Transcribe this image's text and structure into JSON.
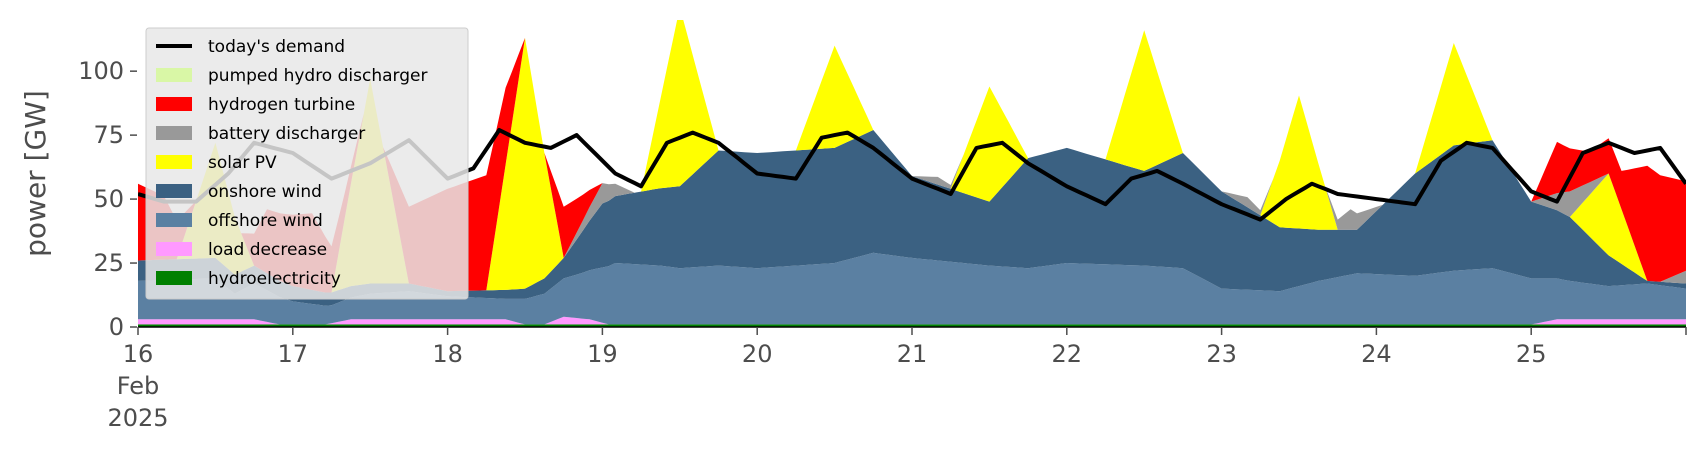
{
  "chart_data": {
    "type": "area",
    "title": "",
    "xlabel": "",
    "ylabel": "power [GW]",
    "ylim": [
      0,
      120
    ],
    "xlim": [
      "2025-02-16T00:00",
      "2025-02-26T00:00"
    ],
    "y_ticks": [
      "0",
      "25",
      "50",
      "75",
      "100"
    ],
    "x_ticks": [
      {
        "label": "16",
        "date": "2025-02-16"
      },
      {
        "label": "17",
        "date": "2025-02-17"
      },
      {
        "label": "18",
        "date": "2025-02-18"
      },
      {
        "label": "19",
        "date": "2025-02-19"
      },
      {
        "label": "20",
        "date": "2025-02-20"
      },
      {
        "label": "21",
        "date": "2025-02-21"
      },
      {
        "label": "22",
        "date": "2025-02-22"
      },
      {
        "label": "23",
        "date": "2025-02-23"
      },
      {
        "label": "24",
        "date": "2025-02-24"
      },
      {
        "label": "25",
        "date": "2025-02-25"
      }
    ],
    "x_tick_sub": [
      "Feb",
      "2025"
    ],
    "grid": false,
    "legend_position": "top-left",
    "stacked": true,
    "series": [
      {
        "name": "hydroelectricity",
        "color": "#008000",
        "points": [
          [
            "2025-02-16T00:00",
            1
          ],
          [
            "2025-02-21T00:00",
            1
          ],
          [
            "2025-02-26T00:00",
            1
          ]
        ]
      },
      {
        "name": "load decrease",
        "color": "#ff99ff",
        "points": [
          [
            "2025-02-16T00:00",
            2
          ],
          [
            "2025-02-16T18:00",
            2
          ],
          [
            "2025-02-16T22:00",
            0
          ],
          [
            "2025-02-17T05:00",
            0
          ],
          [
            "2025-02-17T09:00",
            2
          ],
          [
            "2025-02-18T00:00",
            2
          ],
          [
            "2025-02-18T09:00",
            2
          ],
          [
            "2025-02-18T12:00",
            0
          ],
          [
            "2025-02-18T15:00",
            0
          ],
          [
            "2025-02-18T18:00",
            3
          ],
          [
            "2025-02-18T22:00",
            2
          ],
          [
            "2025-02-19T01:00",
            0
          ],
          [
            "2025-02-25T00:00",
            0
          ],
          [
            "2025-02-25T04:00",
            2
          ],
          [
            "2025-02-26T00:00",
            2
          ]
        ]
      },
      {
        "name": "offshore wind",
        "color": "#5b80a2",
        "points": [
          [
            "2025-02-16T00:00",
            15
          ],
          [
            "2025-02-16T12:00",
            16
          ],
          [
            "2025-02-16T15:00",
            10
          ],
          [
            "2025-02-16T18:00",
            14
          ],
          [
            "2025-02-17T00:00",
            9
          ],
          [
            "2025-02-17T06:00",
            7
          ],
          [
            "2025-02-17T12:00",
            10
          ],
          [
            "2025-02-17T18:00",
            11
          ],
          [
            "2025-02-18T00:00",
            9
          ],
          [
            "2025-02-18T09:00",
            8
          ],
          [
            "2025-02-18T15:00",
            12
          ],
          [
            "2025-02-18T21:00",
            18
          ],
          [
            "2025-02-19T02:00",
            24
          ],
          [
            "2025-02-19T09:00",
            23
          ],
          [
            "2025-02-19T12:00",
            22
          ],
          [
            "2025-02-19T18:00",
            23
          ],
          [
            "2025-02-20T00:00",
            22
          ],
          [
            "2025-02-20T12:00",
            24
          ],
          [
            "2025-02-20T18:00",
            28
          ],
          [
            "2025-02-21T00:00",
            26
          ],
          [
            "2025-02-21T12:00",
            23
          ],
          [
            "2025-02-21T18:00",
            22
          ],
          [
            "2025-02-22T00:00",
            24
          ],
          [
            "2025-02-22T12:00",
            23
          ],
          [
            "2025-02-22T18:00",
            22
          ],
          [
            "2025-02-23T00:00",
            14
          ],
          [
            "2025-02-23T09:00",
            13
          ],
          [
            "2025-02-23T15:00",
            17
          ],
          [
            "2025-02-23T21:00",
            20
          ],
          [
            "2025-02-24T06:00",
            19
          ],
          [
            "2025-02-24T12:00",
            21
          ],
          [
            "2025-02-24T18:00",
            22
          ],
          [
            "2025-02-25T00:00",
            18
          ],
          [
            "2025-02-25T06:00",
            15
          ],
          [
            "2025-02-25T12:00",
            13
          ],
          [
            "2025-02-25T18:00",
            14
          ],
          [
            "2025-02-26T00:00",
            12
          ]
        ]
      },
      {
        "name": "onshore wind",
        "color": "#3b6182",
        "points": [
          [
            "2025-02-16T00:00",
            8
          ],
          [
            "2025-02-16T12:00",
            8
          ],
          [
            "2025-02-17T00:00",
            6
          ],
          [
            "2025-02-17T12:00",
            4
          ],
          [
            "2025-02-18T00:00",
            2
          ],
          [
            "2025-02-18T12:00",
            4
          ],
          [
            "2025-02-18T18:00",
            8
          ],
          [
            "2025-02-19T00:00",
            25
          ],
          [
            "2025-02-19T12:00",
            32
          ],
          [
            "2025-02-19T18:00",
            45
          ],
          [
            "2025-02-20T00:00",
            45
          ],
          [
            "2025-02-20T12:00",
            45
          ],
          [
            "2025-02-20T18:00",
            48
          ],
          [
            "2025-02-21T00:00",
            32
          ],
          [
            "2025-02-21T12:00",
            25
          ],
          [
            "2025-02-21T18:00",
            43
          ],
          [
            "2025-02-22T00:00",
            45
          ],
          [
            "2025-02-22T12:00",
            37
          ],
          [
            "2025-02-22T18:00",
            45
          ],
          [
            "2025-02-23T00:00",
            38
          ],
          [
            "2025-02-23T09:00",
            25
          ],
          [
            "2025-02-23T15:00",
            20
          ],
          [
            "2025-02-23T21:00",
            17
          ],
          [
            "2025-02-24T06:00",
            40
          ],
          [
            "2025-02-24T12:00",
            49
          ],
          [
            "2025-02-24T18:00",
            50
          ],
          [
            "2025-02-25T00:00",
            30
          ],
          [
            "2025-02-25T06:00",
            25
          ],
          [
            "2025-02-25T12:00",
            12
          ],
          [
            "2025-02-25T18:00",
            1
          ],
          [
            "2025-02-26T00:00",
            2
          ]
        ]
      },
      {
        "name": "solar PV",
        "color": "#ffff00",
        "points": [
          [
            "2025-02-16T00:00",
            0
          ],
          [
            "2025-02-16T06:00",
            0
          ],
          [
            "2025-02-16T12:00",
            45
          ],
          [
            "2025-02-16T18:00",
            0
          ],
          [
            "2025-02-17T06:00",
            0
          ],
          [
            "2025-02-17T12:00",
            80
          ],
          [
            "2025-02-17T18:00",
            0
          ],
          [
            "2025-02-18T06:00",
            0
          ],
          [
            "2025-02-18T12:00",
            98
          ],
          [
            "2025-02-18T18:00",
            0
          ],
          [
            "2025-02-19T06:00",
            0
          ],
          [
            "2025-02-19T12:00",
            70
          ],
          [
            "2025-02-19T18:00",
            0
          ],
          [
            "2025-02-20T06:00",
            0
          ],
          [
            "2025-02-20T12:00",
            40
          ],
          [
            "2025-02-20T18:00",
            0
          ],
          [
            "2025-02-21T06:00",
            0
          ],
          [
            "2025-02-21T12:00",
            45
          ],
          [
            "2025-02-21T18:00",
            0
          ],
          [
            "2025-02-22T06:00",
            0
          ],
          [
            "2025-02-22T12:00",
            55
          ],
          [
            "2025-02-22T18:00",
            0
          ],
          [
            "2025-02-23T06:00",
            0
          ],
          [
            "2025-02-23T12:00",
            52
          ],
          [
            "2025-02-23T18:00",
            0
          ],
          [
            "2025-02-24T06:00",
            0
          ],
          [
            "2025-02-24T12:00",
            40
          ],
          [
            "2025-02-24T18:00",
            0
          ],
          [
            "2025-02-25T06:00",
            0
          ],
          [
            "2025-02-25T12:00",
            32
          ],
          [
            "2025-02-25T18:00",
            0
          ],
          [
            "2025-02-26T00:00",
            0
          ]
        ]
      },
      {
        "name": "battery discharger",
        "color": "#999999",
        "points": [
          [
            "2025-02-16T00:00",
            0
          ],
          [
            "2025-02-18T18:00",
            0
          ],
          [
            "2025-02-19T00:00",
            8
          ],
          [
            "2025-02-19T05:00",
            0
          ],
          [
            "2025-02-21T00:00",
            0
          ],
          [
            "2025-02-21T04:00",
            3
          ],
          [
            "2025-02-21T08:00",
            0
          ],
          [
            "2025-02-23T00:00",
            0
          ],
          [
            "2025-02-23T04:00",
            4
          ],
          [
            "2025-02-23T08:00",
            0
          ],
          [
            "2025-02-23T16:00",
            0
          ],
          [
            "2025-02-23T20:00",
            8
          ],
          [
            "2025-02-24T01:00",
            0
          ],
          [
            "2025-02-25T00:00",
            0
          ],
          [
            "2025-02-25T06:00",
            10
          ],
          [
            "2025-02-25T12:00",
            0
          ],
          [
            "2025-02-25T20:00",
            0
          ],
          [
            "2025-02-26T00:00",
            5
          ]
        ]
      },
      {
        "name": "hydrogen turbine",
        "color": "#ff0000",
        "points": [
          [
            "2025-02-16T00:00",
            30
          ],
          [
            "2025-02-16T04:00",
            25
          ],
          [
            "2025-02-16T09:00",
            0
          ],
          [
            "2025-02-16T16:00",
            0
          ],
          [
            "2025-02-16T20:00",
            25
          ],
          [
            "2025-02-17T03:00",
            30
          ],
          [
            "2025-02-17T08:00",
            10
          ],
          [
            "2025-02-17T11:00",
            0
          ],
          [
            "2025-02-17T14:00",
            0
          ],
          [
            "2025-02-17T18:00",
            30
          ],
          [
            "2025-02-18T00:00",
            40
          ],
          [
            "2025-02-18T06:00",
            45
          ],
          [
            "2025-02-18T09:00",
            30
          ],
          [
            "2025-02-18T12:00",
            0
          ],
          [
            "2025-02-18T15:00",
            0
          ],
          [
            "2025-02-18T18:00",
            20
          ],
          [
            "2025-02-19T00:00",
            0
          ],
          [
            "2025-02-25T00:00",
            0
          ],
          [
            "2025-02-25T04:00",
            20
          ],
          [
            "2025-02-25T09:00",
            12
          ],
          [
            "2025-02-25T14:00",
            15
          ],
          [
            "2025-02-25T18:00",
            45
          ],
          [
            "2025-02-26T00:00",
            35
          ]
        ]
      },
      {
        "name": "pumped hydro discharger",
        "color": "#d9f7a6",
        "points": [
          [
            "2025-02-16T00:00",
            0
          ],
          [
            "2025-02-26T00:00",
            0
          ]
        ]
      }
    ],
    "demand": {
      "name": "today's demand",
      "color": "#000000",
      "points": [
        [
          "2025-02-16T00:00",
          52
        ],
        [
          "2025-02-16T04:00",
          49
        ],
        [
          "2025-02-16T09:00",
          49
        ],
        [
          "2025-02-16T14:00",
          60
        ],
        [
          "2025-02-16T18:00",
          72
        ],
        [
          "2025-02-17T00:00",
          68
        ],
        [
          "2025-02-17T06:00",
          58
        ],
        [
          "2025-02-17T12:00",
          64
        ],
        [
          "2025-02-17T18:00",
          73
        ],
        [
          "2025-02-18T00:00",
          58
        ],
        [
          "2025-02-18T04:00",
          62
        ],
        [
          "2025-02-18T08:00",
          77
        ],
        [
          "2025-02-18T12:00",
          72
        ],
        [
          "2025-02-18T16:00",
          70
        ],
        [
          "2025-02-18T20:00",
          75
        ],
        [
          "2025-02-19T02:00",
          60
        ],
        [
          "2025-02-19T06:00",
          55
        ],
        [
          "2025-02-19T10:00",
          72
        ],
        [
          "2025-02-19T14:00",
          76
        ],
        [
          "2025-02-19T18:00",
          72
        ],
        [
          "2025-02-20T00:00",
          60
        ],
        [
          "2025-02-20T06:00",
          58
        ],
        [
          "2025-02-20T10:00",
          74
        ],
        [
          "2025-02-20T14:00",
          76
        ],
        [
          "2025-02-20T18:00",
          70
        ],
        [
          "2025-02-21T00:00",
          58
        ],
        [
          "2025-02-21T06:00",
          52
        ],
        [
          "2025-02-21T10:00",
          70
        ],
        [
          "2025-02-21T14:00",
          72
        ],
        [
          "2025-02-21T18:00",
          64
        ],
        [
          "2025-02-22T00:00",
          55
        ],
        [
          "2025-02-22T06:00",
          48
        ],
        [
          "2025-02-22T10:00",
          58
        ],
        [
          "2025-02-22T14:00",
          61
        ],
        [
          "2025-02-22T18:00",
          56
        ],
        [
          "2025-02-23T00:00",
          48
        ],
        [
          "2025-02-23T06:00",
          42
        ],
        [
          "2025-02-23T10:00",
          50
        ],
        [
          "2025-02-23T14:00",
          56
        ],
        [
          "2025-02-23T18:00",
          52
        ],
        [
          "2025-02-24T00:00",
          50
        ],
        [
          "2025-02-24T06:00",
          48
        ],
        [
          "2025-02-24T10:00",
          65
        ],
        [
          "2025-02-24T14:00",
          72
        ],
        [
          "2025-02-24T18:00",
          70
        ],
        [
          "2025-02-25T00:00",
          53
        ],
        [
          "2025-02-25T04:00",
          49
        ],
        [
          "2025-02-25T08:00",
          68
        ],
        [
          "2025-02-25T12:00",
          72
        ],
        [
          "2025-02-25T16:00",
          68
        ],
        [
          "2025-02-25T20:00",
          70
        ],
        [
          "2025-02-26T00:00",
          56
        ]
      ]
    },
    "legend_order": [
      "today's demand",
      "pumped hydro discharger",
      "hydrogen turbine",
      "battery discharger",
      "solar PV",
      "onshore wind",
      "offshore wind",
      "load decrease",
      "hydroelectricity"
    ]
  }
}
